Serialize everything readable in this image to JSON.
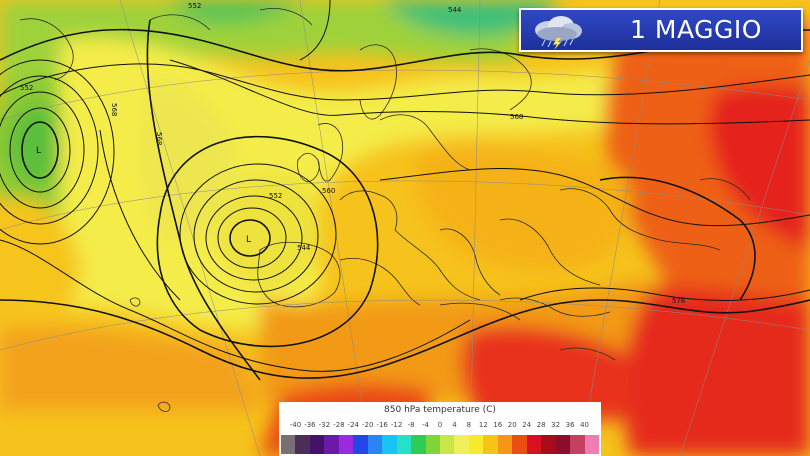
{
  "banner": {
    "date": "1 MAGGIO",
    "icon": "storm-cloud-icon"
  },
  "legend": {
    "title": "850 hPa temperature (C)",
    "ticks": [
      "-40",
      "-36",
      "-32",
      "-28",
      "-24",
      "-20",
      "-16",
      "-12",
      "-8",
      "-4",
      "0",
      "4",
      "8",
      "12",
      "16",
      "20",
      "24",
      "28",
      "32",
      "36",
      "40"
    ],
    "colors": [
      "#7a6f75",
      "#4a2e58",
      "#451269",
      "#6a1aa6",
      "#9a2cde",
      "#2247e6",
      "#2a84f2",
      "#19c3f4",
      "#23e2c8",
      "#2ecc54",
      "#7fd437",
      "#c8e648",
      "#f1f05a",
      "#f7ea2c",
      "#f7c316",
      "#f49716",
      "#ec4d13",
      "#d91020",
      "#a80c1a",
      "#8c0c2e",
      "#c44060",
      "#ef7db1"
    ]
  },
  "isohypses": [
    {
      "value": "544",
      "type": "contour-label"
    },
    {
      "value": "552",
      "type": "contour-label"
    },
    {
      "value": "560",
      "type": "contour-label"
    },
    {
      "value": "568",
      "type": "contour-label"
    },
    {
      "value": "576",
      "type": "contour-label"
    }
  ],
  "pressure_centers": [
    {
      "label": "L",
      "kind": "low-pressure-center"
    },
    {
      "label": "L",
      "kind": "low-pressure-center"
    }
  ]
}
